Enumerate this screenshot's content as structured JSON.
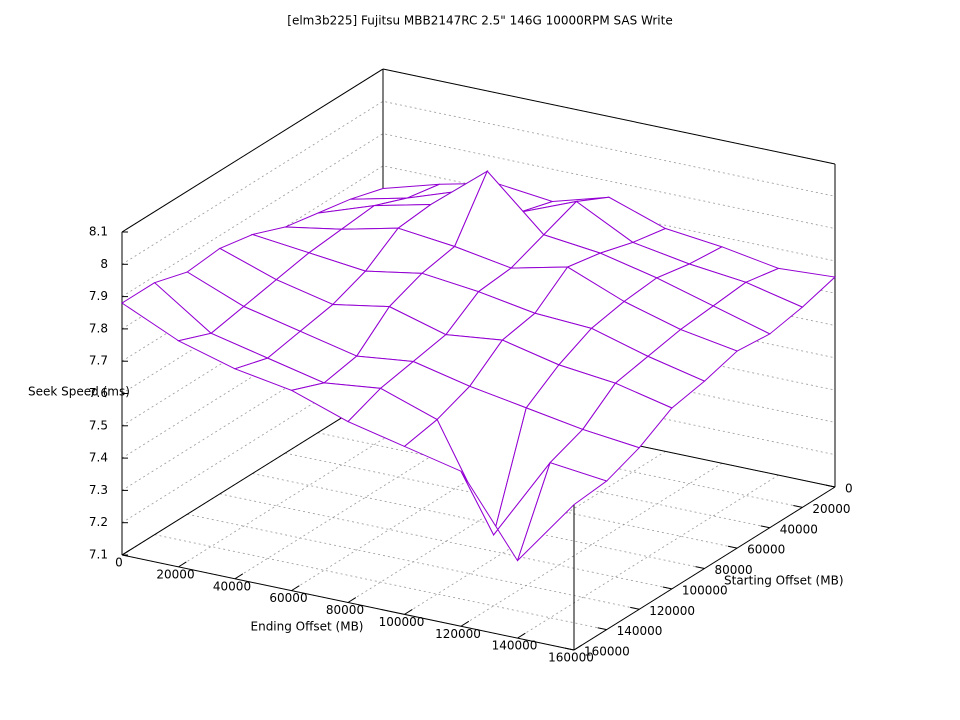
{
  "chart_data": {
    "type": "surface",
    "title": "[elm3b225] Fujitsu MBB2147RC 2.5\" 146G 10000RPM SAS Write",
    "xlabel": "Ending Offset (MB)",
    "ylabel": "Starting Offset (MB)",
    "zlabel": "Seek Speed (ms)",
    "x": [
      0,
      20000,
      40000,
      60000,
      80000,
      100000,
      120000,
      140000,
      160000
    ],
    "y": [
      0,
      20000,
      40000,
      60000,
      80000,
      100000,
      120000,
      140000,
      160000
    ],
    "values": [
      [
        7.73,
        7.78,
        7.82,
        7.8,
        7.85,
        7.79,
        7.77,
        7.74,
        7.75
      ],
      [
        7.76,
        7.8,
        7.86,
        7.83,
        7.9,
        7.81,
        7.78,
        7.76,
        7.72
      ],
      [
        7.78,
        7.84,
        7.88,
        8.02,
        7.86,
        7.84,
        7.8,
        7.75,
        7.7
      ],
      [
        7.8,
        7.83,
        7.87,
        7.85,
        7.82,
        7.86,
        7.79,
        7.74,
        7.71
      ],
      [
        7.84,
        7.82,
        7.8,
        7.83,
        7.81,
        7.78,
        7.77,
        7.72,
        7.68
      ],
      [
        7.86,
        7.8,
        7.76,
        7.79,
        7.74,
        7.76,
        7.72,
        7.7,
        7.66
      ],
      [
        7.85,
        7.78,
        7.74,
        7.7,
        7.72,
        7.68,
        7.65,
        7.62,
        7.6
      ],
      [
        7.88,
        7.76,
        7.72,
        7.68,
        7.7,
        7.64,
        7.32,
        7.58,
        7.56
      ],
      [
        7.88,
        7.8,
        7.75,
        7.72,
        7.66,
        7.62,
        7.58,
        7.34,
        7.55
      ]
    ],
    "top_color": "#9400d3",
    "bottom_color": "#009e73",
    "xlim": [
      0,
      160000
    ],
    "ylim": [
      0,
      160000
    ],
    "zlim": [
      7.1,
      8.1
    ],
    "xticks": [
      0,
      20000,
      40000,
      60000,
      80000,
      100000,
      120000,
      140000,
      160000
    ],
    "yticks": [
      0,
      20000,
      40000,
      60000,
      80000,
      100000,
      120000,
      140000,
      160000
    ],
    "zticks": [
      7.1,
      7.2,
      7.3,
      7.4,
      7.5,
      7.6,
      7.7,
      7.8,
      7.9,
      8,
      8.1
    ],
    "grid": true
  }
}
